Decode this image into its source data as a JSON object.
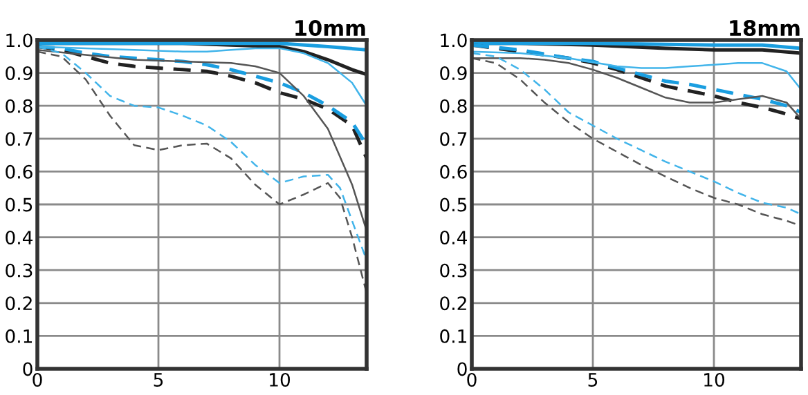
{
  "chart_data": [
    {
      "type": "line",
      "title": "10mm",
      "xlim": [
        0,
        13.6
      ],
      "ylim": [
        0,
        1.0
      ],
      "xticks": [
        0,
        5,
        10
      ],
      "yticks": [
        0,
        0.1,
        0.2,
        0.3,
        0.4,
        0.5,
        0.6,
        0.7,
        0.8,
        0.9,
        {
          "value": 1.0,
          "label": "1.0"
        }
      ],
      "grid": true,
      "legend": false,
      "tick_labels": "xy",
      "marker": "none",
      "series": [
        {
          "color": "#222222",
          "line_style": "solid",
          "x": [
            0,
            2,
            4,
            6,
            8,
            10,
            11,
            12,
            13,
            13.6
          ],
          "values": [
            0.99,
            0.99,
            0.99,
            0.99,
            0.985,
            0.98,
            0.965,
            0.94,
            0.91,
            0.895
          ]
        },
        {
          "color": "#1a9ee0",
          "line_style": "solid",
          "x": [
            0,
            2,
            4,
            6,
            8,
            10,
            12,
            13.6
          ],
          "values": [
            0.99,
            0.99,
            0.99,
            0.99,
            0.99,
            0.99,
            0.98,
            0.97
          ]
        },
        {
          "color": "#222222",
          "line_style": "dashed",
          "x": [
            0,
            1,
            2,
            3,
            4,
            5,
            6,
            7,
            8,
            9,
            10,
            11,
            12,
            13,
            13.6
          ],
          "values": [
            0.98,
            0.97,
            0.95,
            0.93,
            0.92,
            0.915,
            0.91,
            0.905,
            0.89,
            0.87,
            0.84,
            0.82,
            0.79,
            0.74,
            0.64
          ]
        },
        {
          "color": "#1a9ee0",
          "line_style": "dashed",
          "x": [
            0,
            1,
            2,
            3,
            4,
            5,
            6,
            7,
            8,
            9,
            10,
            11,
            12,
            13,
            13.6
          ],
          "values": [
            0.98,
            0.975,
            0.96,
            0.95,
            0.945,
            0.94,
            0.935,
            0.925,
            0.91,
            0.89,
            0.87,
            0.84,
            0.8,
            0.75,
            0.68
          ]
        },
        {
          "color": "#555555",
          "line_style": "solid",
          "x": [
            0,
            2,
            4,
            6,
            8,
            9,
            10,
            11,
            12,
            13,
            13.6
          ],
          "values": [
            0.97,
            0.955,
            0.94,
            0.935,
            0.93,
            0.92,
            0.9,
            0.83,
            0.73,
            0.56,
            0.42
          ]
        },
        {
          "color": "#41b4ea",
          "line_style": "solid",
          "x": [
            0,
            2,
            4,
            6,
            7,
            8,
            9,
            10,
            11,
            12,
            13,
            13.6
          ],
          "values": [
            0.98,
            0.975,
            0.97,
            0.965,
            0.965,
            0.97,
            0.975,
            0.975,
            0.96,
            0.93,
            0.87,
            0.8
          ]
        },
        {
          "color": "#555555",
          "line_style": "dashed",
          "x": [
            0,
            1,
            2,
            3,
            4,
            5,
            6,
            7,
            8,
            9,
            10,
            11,
            12,
            12.5,
            13,
            13.6
          ],
          "values": [
            0.965,
            0.95,
            0.88,
            0.77,
            0.68,
            0.665,
            0.68,
            0.685,
            0.64,
            0.56,
            0.5,
            0.53,
            0.565,
            0.52,
            0.4,
            0.23
          ]
        },
        {
          "color": "#41b4ea",
          "line_style": "dashed",
          "x": [
            0,
            1,
            2,
            3,
            4,
            5,
            6,
            7,
            8,
            9,
            10,
            11,
            12,
            12.5,
            13,
            13.6
          ],
          "values": [
            0.98,
            0.96,
            0.9,
            0.83,
            0.8,
            0.795,
            0.77,
            0.74,
            0.69,
            0.62,
            0.565,
            0.585,
            0.59,
            0.55,
            0.45,
            0.33
          ]
        }
      ]
    },
    {
      "type": "line",
      "title": "18mm",
      "xlim": [
        0,
        13.6
      ],
      "ylim": [
        0,
        1.0
      ],
      "xticks": [
        0,
        5,
        10
      ],
      "yticks": [
        0,
        0.1,
        0.2,
        0.3,
        0.4,
        0.5,
        0.6,
        0.7,
        0.8,
        0.9,
        {
          "value": 1.0,
          "label": "1.0"
        }
      ],
      "grid": true,
      "legend": false,
      "tick_labels": "xy",
      "marker": "none",
      "series": [
        {
          "color": "#222222",
          "line_style": "solid",
          "x": [
            0,
            2,
            5,
            8,
            10,
            12,
            13.6
          ],
          "values": [
            0.99,
            0.99,
            0.985,
            0.975,
            0.97,
            0.97,
            0.96
          ]
        },
        {
          "color": "#1a9ee0",
          "line_style": "solid",
          "x": [
            0,
            5,
            10,
            12,
            13.6
          ],
          "values": [
            0.99,
            0.99,
            0.985,
            0.985,
            0.975
          ]
        },
        {
          "color": "#222222",
          "line_style": "dashed",
          "x": [
            0,
            2,
            4,
            5,
            6,
            7,
            8,
            9,
            10,
            11,
            12,
            13,
            13.6
          ],
          "values": [
            0.985,
            0.965,
            0.945,
            0.93,
            0.91,
            0.885,
            0.86,
            0.845,
            0.83,
            0.81,
            0.795,
            0.775,
            0.76
          ]
        },
        {
          "color": "#1a9ee0",
          "line_style": "dashed",
          "x": [
            0,
            2,
            4,
            5,
            6,
            7,
            8,
            9,
            10,
            11,
            12,
            13,
            13.6
          ],
          "values": [
            0.985,
            0.97,
            0.945,
            0.935,
            0.915,
            0.895,
            0.875,
            0.865,
            0.85,
            0.835,
            0.82,
            0.8,
            0.78
          ]
        },
        {
          "color": "#555555",
          "line_style": "solid",
          "x": [
            0,
            2,
            3,
            4,
            5,
            6,
            7,
            8,
            9,
            10,
            11,
            12,
            13,
            13.6
          ],
          "values": [
            0.945,
            0.945,
            0.94,
            0.93,
            0.91,
            0.885,
            0.855,
            0.825,
            0.81,
            0.81,
            0.82,
            0.83,
            0.81,
            0.76
          ]
        },
        {
          "color": "#41b4ea",
          "line_style": "solid",
          "x": [
            0,
            2,
            4,
            6,
            7,
            8,
            9,
            10,
            11,
            12,
            13,
            13.6
          ],
          "values": [
            0.965,
            0.96,
            0.945,
            0.92,
            0.915,
            0.915,
            0.92,
            0.925,
            0.93,
            0.93,
            0.905,
            0.85
          ]
        },
        {
          "color": "#555555",
          "line_style": "dashed",
          "x": [
            0,
            1,
            2,
            3,
            4,
            5,
            6,
            7,
            8,
            9,
            10,
            11,
            12,
            13,
            13.6
          ],
          "values": [
            0.945,
            0.93,
            0.88,
            0.81,
            0.75,
            0.7,
            0.66,
            0.62,
            0.585,
            0.55,
            0.52,
            0.5,
            0.47,
            0.45,
            0.435
          ]
        },
        {
          "color": "#41b4ea",
          "line_style": "dashed",
          "x": [
            0,
            1,
            2,
            3,
            4,
            5,
            6,
            7,
            8,
            9,
            10,
            11,
            12,
            13,
            13.6
          ],
          "values": [
            0.96,
            0.95,
            0.91,
            0.85,
            0.78,
            0.74,
            0.7,
            0.665,
            0.63,
            0.6,
            0.57,
            0.535,
            0.505,
            0.49,
            0.47
          ]
        }
      ]
    }
  ]
}
